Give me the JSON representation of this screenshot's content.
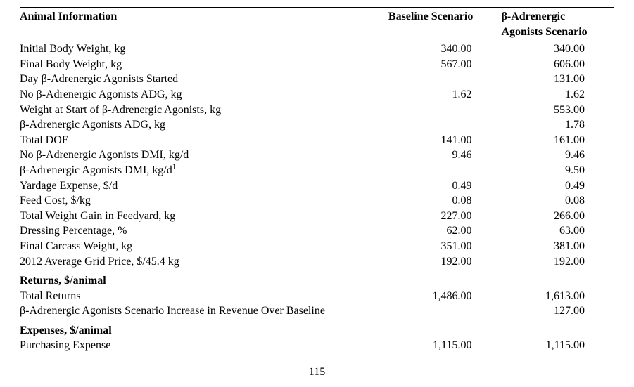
{
  "header": {
    "col1": "Animal Information",
    "col2": "Baseline Scenario",
    "col3_line1": "β-Adrenergic",
    "col3_line2": "Agonists Scenario"
  },
  "rows": [
    {
      "label": "Initial Body Weight, kg",
      "baseline": "340.00",
      "scenario": "340.00"
    },
    {
      "label": "Final Body Weight, kg",
      "baseline": "567.00",
      "scenario": "606.00"
    },
    {
      "label": "Day β-Adrenergic Agonists Started",
      "baseline": "",
      "scenario": "131.00"
    },
    {
      "label": "No β-Adrenergic Agonists ADG, kg",
      "baseline": "1.62",
      "scenario": "1.62"
    },
    {
      "label": "Weight at Start of β-Adrenergic Agonists, kg",
      "baseline": "",
      "scenario": "553.00"
    },
    {
      "label": "β-Adrenergic Agonists ADG, kg",
      "baseline": "",
      "scenario": "1.78"
    },
    {
      "label": "Total DOF",
      "baseline": "141.00",
      "scenario": "161.00"
    },
    {
      "label": "No β-Adrenergic Agonists DMI, kg/d",
      "baseline": "9.46",
      "scenario": "9.46"
    },
    {
      "label": "β-Adrenergic Agonists DMI, kg/d",
      "sup": "1",
      "baseline": "",
      "scenario": "9.50"
    },
    {
      "label": "Yardage Expense, $/d",
      "baseline": "0.49",
      "scenario": "0.49"
    },
    {
      "label": "Feed Cost, $/kg",
      "baseline": "0.08",
      "scenario": "0.08"
    },
    {
      "label": "Total Weight Gain in Feedyard, kg",
      "baseline": "227.00",
      "scenario": "266.00"
    },
    {
      "label": "Dressing Percentage, %",
      "baseline": "62.00",
      "scenario": "63.00"
    },
    {
      "label": "Final Carcass Weight, kg",
      "baseline": "351.00",
      "scenario": "381.00"
    },
    {
      "label": "2012 Average Grid Price, $/45.4 kg",
      "baseline": "192.00",
      "scenario": "192.00"
    }
  ],
  "returns_header": "Returns, $/animal",
  "returns_rows": [
    {
      "label": "Total Returns",
      "baseline": "1,486.00",
      "scenario": "1,613.00"
    },
    {
      "label": "β-Adrenergic Agonists Scenario Increase in Revenue Over Baseline",
      "baseline": "",
      "scenario": "127.00"
    }
  ],
  "expenses_header": "Expenses, $/animal",
  "expenses_rows": [
    {
      "label": "Purchasing Expense",
      "baseline": "1,115.00",
      "scenario": "1,115.00"
    }
  ],
  "page_number": "115"
}
